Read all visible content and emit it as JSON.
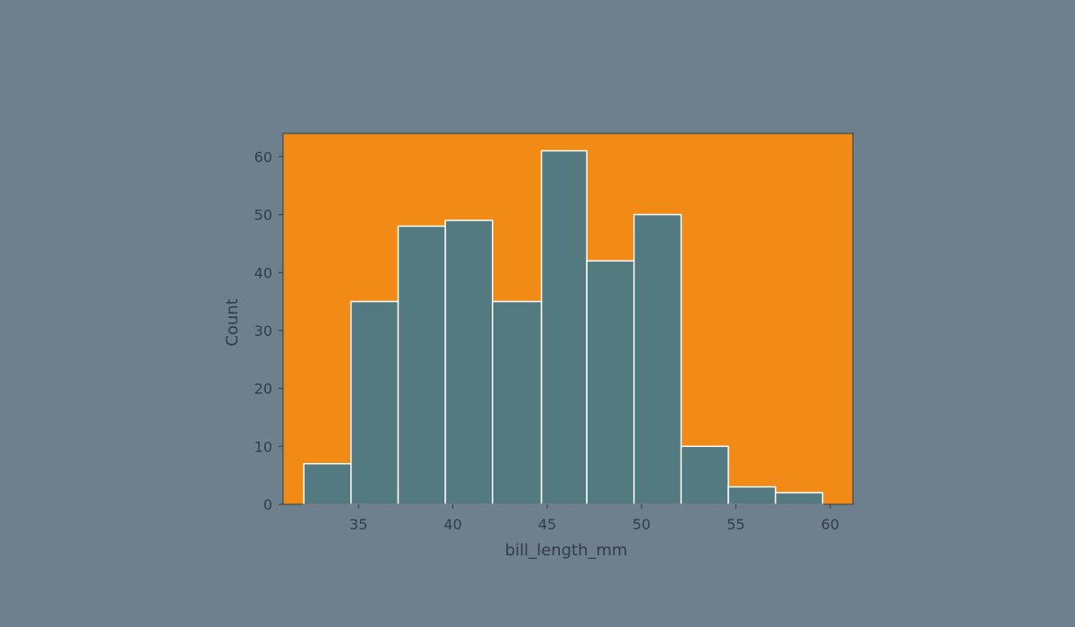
{
  "colors": {
    "page_background": "#6e7f8e",
    "plot_background": "#f28a16",
    "bar_fill": "#537981",
    "bar_edge": "#ffffff",
    "axis": "#333d47"
  },
  "chart_data": {
    "type": "bar",
    "title": "",
    "xlabel": "bill_length_mm",
    "ylabel": "Count",
    "xlim": [
      31.0,
      61.2
    ],
    "ylim": [
      0,
      64
    ],
    "xticks": [
      35,
      40,
      45,
      50,
      55,
      60
    ],
    "yticks": [
      0,
      10,
      20,
      30,
      40,
      50,
      60
    ],
    "grid": false,
    "bins": [
      {
        "x0": 32.1,
        "x1": 34.6,
        "count": 7
      },
      {
        "x0": 34.6,
        "x1": 37.1,
        "count": 35
      },
      {
        "x0": 37.1,
        "x1": 39.6,
        "count": 48
      },
      {
        "x0": 39.6,
        "x1": 42.1,
        "count": 49
      },
      {
        "x0": 42.1,
        "x1": 44.7,
        "count": 35
      },
      {
        "x0": 44.7,
        "x1": 47.1,
        "count": 61
      },
      {
        "x0": 47.1,
        "x1": 49.6,
        "count": 42
      },
      {
        "x0": 49.6,
        "x1": 52.1,
        "count": 50
      },
      {
        "x0": 52.1,
        "x1": 54.6,
        "count": 10
      },
      {
        "x0": 54.6,
        "x1": 57.1,
        "count": 3
      },
      {
        "x0": 57.1,
        "x1": 59.6,
        "count": 2
      }
    ]
  }
}
